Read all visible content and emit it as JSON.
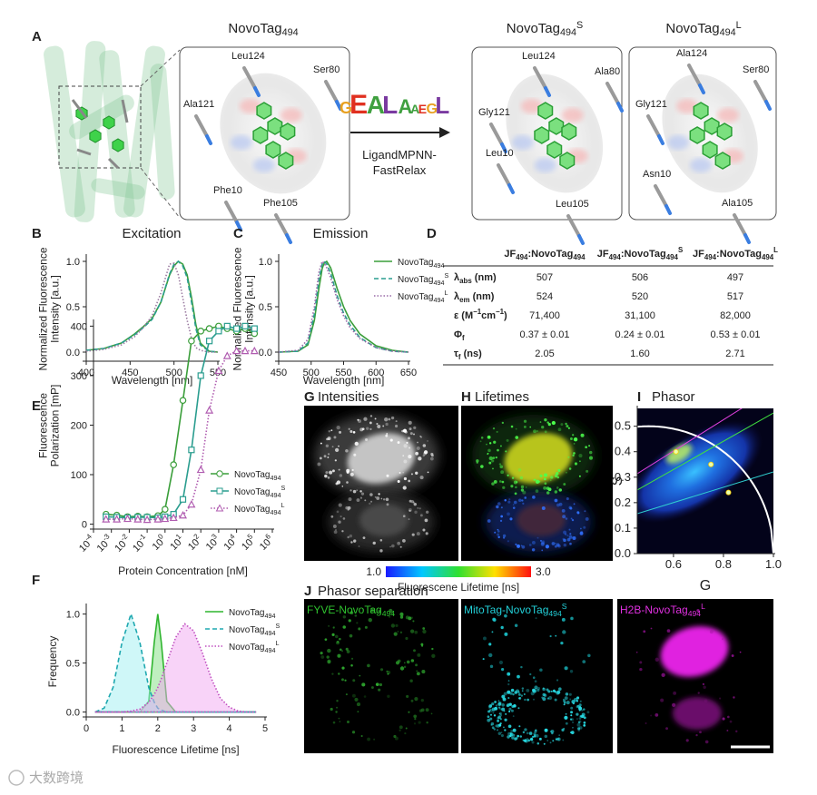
{
  "panel_a": {
    "label": "A",
    "titles": [
      [
        {
          "text": "NovoTag"
        },
        {
          "sub": "494"
        }
      ],
      [
        {
          "text": "NovoTag"
        },
        {
          "sub": "494"
        },
        {
          "sup": "S"
        }
      ],
      [
        {
          "text": "NovoTag"
        },
        {
          "sub": "494"
        },
        {
          "sup": "L"
        }
      ]
    ],
    "residues": [
      [
        "Leu124",
        "Ser80",
        "Ala121",
        "Phe10",
        "Phe105"
      ],
      [
        "Leu124",
        "Ala80",
        "Gly121",
        "Leu10",
        "Leu105"
      ],
      [
        "Ala124",
        "Ser80",
        "Gly121",
        "Asn10",
        "Ala105"
      ]
    ],
    "logo": [
      "G",
      "E",
      "A",
      "L",
      "A",
      "A",
      "E",
      "G",
      "L"
    ],
    "method": [
      "LigandMPNN-",
      "FastRelax"
    ]
  },
  "table_d": {
    "label": "D",
    "columns": [
      [
        {
          "text": "JF"
        },
        {
          "sub": "494"
        },
        {
          "text": ":NovoTag"
        },
        {
          "sub": "494"
        }
      ],
      [
        {
          "text": "JF"
        },
        {
          "sub": "494"
        },
        {
          "text": ":NovoTag"
        },
        {
          "sub": "494"
        },
        {
          "sup": "S"
        }
      ],
      [
        {
          "text": "JF"
        },
        {
          "sub": "494"
        },
        {
          "text": ":NovoTag"
        },
        {
          "sub": "494"
        },
        {
          "sup": "L"
        }
      ]
    ],
    "rows": [
      {
        "label": [
          {
            "text": "λ"
          },
          {
            "sub": "abs"
          },
          {
            "text": " (nm)"
          }
        ],
        "cells": [
          "507",
          "506",
          "497"
        ]
      },
      {
        "label": [
          {
            "text": "λ"
          },
          {
            "sub": "em"
          },
          {
            "text": " (nm)"
          }
        ],
        "cells": [
          "524",
          "520",
          "517"
        ]
      },
      {
        "label": [
          {
            "text": "ε (M"
          },
          {
            "sup": "−1"
          },
          {
            "text": "cm"
          },
          {
            "sup": "−1"
          },
          {
            "text": ")"
          }
        ],
        "cells": [
          "71,400",
          "31,100",
          "82,000"
        ]
      },
      {
        "label": [
          {
            "text": "Φ"
          },
          {
            "sub": "f"
          }
        ],
        "cells": [
          "0.37 ± 0.01",
          "0.24 ± 0.01",
          "0.53 ± 0.01"
        ]
      },
      {
        "label": [
          {
            "text": "τ"
          },
          {
            "sub": "f"
          },
          {
            "text": " (ns)"
          }
        ],
        "cells": [
          "2.05",
          "1.60",
          "2.71"
        ]
      }
    ]
  },
  "image_panels": [
    {
      "label": "G",
      "title": "Intensities"
    },
    {
      "label": "H",
      "title": "Lifetimes"
    }
  ],
  "colorbar": {
    "min": "1.0",
    "max": "3.0",
    "label": "Fluorescene Lifetime [ns]"
  },
  "panel_j": {
    "label": "J",
    "title": "Phasor separation",
    "channels": [
      [
        {
          "text": "FYVE-NovoTag"
        },
        {
          "sub": "494"
        }
      ],
      [
        {
          "text": "MitoTag-NovoTag"
        },
        {
          "sub": "494"
        },
        {
          "sup": "S"
        }
      ],
      [
        {
          "text": "H2B-NovoTag"
        },
        {
          "sub": "494"
        },
        {
          "sup": "L"
        }
      ]
    ]
  },
  "watermark": "大数跨境",
  "chart_data": [
    {
      "type": "line",
      "label": "B",
      "title": "Excitation",
      "xlabel": "Wavelength [nm]",
      "ylabel": [
        "Normalized Fluorescence",
        "Intensity [a.u.]"
      ],
      "x": [
        400,
        420,
        440,
        455,
        465,
        475,
        485,
        495,
        500,
        505,
        510,
        515,
        520,
        525,
        530,
        540,
        550
      ],
      "xlim": [
        400,
        550
      ],
      "xticks": [
        400,
        450,
        500,
        550
      ],
      "ylim": [
        -0.1,
        1.05
      ],
      "yticks": [
        {
          "value": 0,
          "label": "0.0"
        },
        0.5,
        {
          "value": 1,
          "label": "1.0"
        }
      ],
      "series": [
        {
          "color": "#3a9e3a",
          "dash": "solid",
          "values": [
            0.02,
            0.04,
            0.1,
            0.2,
            0.28,
            0.37,
            0.55,
            0.85,
            0.95,
            1.0,
            0.97,
            0.85,
            0.6,
            0.3,
            0.1,
            0.01,
            0.0
          ]
        },
        {
          "color": "#2a9d8f",
          "dash": "dashed",
          "values": [
            0.02,
            0.04,
            0.1,
            0.19,
            0.27,
            0.36,
            0.55,
            0.86,
            0.97,
            1.0,
            0.95,
            0.82,
            0.55,
            0.26,
            0.08,
            0.01,
            0.0
          ]
        },
        {
          "color": "#9a7aa0",
          "dash": "dotted",
          "values": [
            0.01,
            0.03,
            0.08,
            0.17,
            0.27,
            0.4,
            0.65,
            0.97,
            0.98,
            0.85,
            0.6,
            0.35,
            0.15,
            0.05,
            0.02,
            0.0,
            0.0
          ]
        }
      ]
    },
    {
      "type": "line",
      "label": "C",
      "title": "Emission",
      "xlabel": "Wavelength [nm]",
      "ylabel": [
        "Normalized Fluorescence",
        "Intensity [a.u.]"
      ],
      "legend": "top-right",
      "x": [
        450,
        480,
        495,
        505,
        512,
        517,
        520,
        524,
        530,
        540,
        550,
        560,
        575,
        600,
        625,
        650
      ],
      "xlim": [
        450,
        650
      ],
      "xticks": [
        450,
        500,
        550,
        600,
        650
      ],
      "ylim": [
        -0.1,
        1.05
      ],
      "yticks": [
        {
          "value": 0,
          "label": "0.0"
        },
        0.5,
        {
          "value": 1,
          "label": "1.0"
        }
      ],
      "series": [
        {
          "name": [
            {
              "text": "NovoTag"
            },
            {
              "sub": "494"
            }
          ],
          "color": "#3a9e3a",
          "dash": "solid",
          "values": [
            0,
            0.01,
            0.08,
            0.35,
            0.7,
            0.92,
            0.98,
            1.0,
            0.93,
            0.7,
            0.5,
            0.35,
            0.2,
            0.07,
            0.02,
            0.0
          ]
        },
        {
          "name": [
            {
              "text": "NovoTag"
            },
            {
              "sub": "494"
            },
            {
              "sup": "S"
            }
          ],
          "color": "#2a9d8f",
          "dash": "dashed",
          "values": [
            0,
            0.01,
            0.1,
            0.42,
            0.8,
            0.97,
            1.0,
            0.97,
            0.87,
            0.62,
            0.43,
            0.3,
            0.16,
            0.05,
            0.01,
            0
          ]
        },
        {
          "name": [
            {
              "text": "NovoTag"
            },
            {
              "sub": "494"
            },
            {
              "sup": "L"
            }
          ],
          "color": "#9a6aa8",
          "dash": "dotted",
          "values": [
            0,
            0.02,
            0.14,
            0.5,
            0.88,
            1.0,
            0.98,
            0.93,
            0.82,
            0.58,
            0.4,
            0.27,
            0.15,
            0.05,
            0.01,
            0
          ]
        }
      ]
    },
    {
      "type": "line",
      "label": "E",
      "xscale": "log",
      "xlabel": "Protein Concentration [nM]",
      "ylabel": [
        "Fluorescence",
        "Polarization [mP]"
      ],
      "legend": "right",
      "x": [
        0.0005,
        0.002,
        0.008,
        0.03,
        0.1,
        0.4,
        1,
        3,
        10,
        30,
        100,
        300,
        1000,
        3000,
        10000,
        30000,
        100000
      ],
      "xlim": [
        0.0001,
        1000000
      ],
      "xticks": [
        {
          "value": 0.0001,
          "label": "10",
          "sup": "-4"
        },
        {
          "value": 0.001,
          "label": "10",
          "sup": "-3"
        },
        {
          "value": 0.01,
          "label": "10",
          "sup": "-2"
        },
        {
          "value": 0.1,
          "label": "10",
          "sup": "-1"
        },
        {
          "value": 1,
          "label": "10",
          "sup": "0"
        },
        {
          "value": 10,
          "label": "10",
          "sup": "1"
        },
        {
          "value": 100,
          "label": "10",
          "sup": "2"
        },
        {
          "value": 1000,
          "label": "10",
          "sup": "3"
        },
        {
          "value": 10000,
          "label": "10",
          "sup": "4"
        },
        {
          "value": 100000,
          "label": "10",
          "sup": "5"
        },
        {
          "value": 1000000,
          "label": "10",
          "sup": "6"
        }
      ],
      "ylim": [
        -10,
        408
      ],
      "yticks": [
        0,
        100,
        200,
        300,
        400
      ],
      "series": [
        {
          "name": [
            {
              "text": "NovoTag"
            },
            {
              "sub": "494"
            }
          ],
          "color": "#3a9e3a",
          "dash": "solid",
          "marker": "circle",
          "values": [
            20,
            18,
            15,
            16,
            15,
            17,
            30,
            120,
            250,
            370,
            390,
            395,
            400,
            395,
            390,
            395,
            385
          ]
        },
        {
          "name": [
            {
              "text": "NovoTag"
            },
            {
              "sub": "494"
            },
            {
              "sup": "S"
            }
          ],
          "color": "#2a9d8f",
          "dash": "solid",
          "marker": "square",
          "values": [
            15,
            14,
            13,
            14,
            14,
            13,
            15,
            20,
            50,
            150,
            300,
            370,
            390,
            400,
            395,
            400,
            395
          ]
        },
        {
          "name": [
            {
              "text": "NovoTag"
            },
            {
              "sub": "494"
            },
            {
              "sup": "L"
            }
          ],
          "color": "#b05cb0",
          "dash": "dotted",
          "marker": "triangle",
          "values": [
            10,
            10,
            11,
            10,
            9,
            10,
            11,
            13,
            18,
            40,
            110,
            230,
            310,
            340,
            350,
            350,
            350
          ]
        }
      ]
    },
    {
      "type": "area",
      "label": "F",
      "xlabel": "Fluorescence Lifetime [ns]",
      "ylabel": [
        "Frequency"
      ],
      "legend": "top-right",
      "x": [
        0.25,
        0.5,
        0.75,
        1.0,
        1.25,
        1.5,
        1.75,
        1.9,
        2.0,
        2.1,
        2.25,
        2.5,
        2.75,
        3.0,
        3.25,
        3.5,
        3.75,
        4.0,
        4.25,
        4.5,
        4.75
      ],
      "xlim": [
        0,
        5
      ],
      "xticks": [
        0,
        1,
        2,
        3,
        4,
        5
      ],
      "ylim": [
        -0.05,
        1.08
      ],
      "yticks": [
        {
          "value": 0,
          "label": "0.0"
        },
        0.5,
        {
          "value": 1,
          "label": "1.0"
        }
      ],
      "series": [
        {
          "name": [
            {
              "text": "NovoTag"
            },
            {
              "sub": "494"
            }
          ],
          "color": "#2fb52f",
          "fill": "#7fe07f",
          "dash": "solid",
          "values": [
            0,
            0,
            0,
            0,
            0,
            0,
            0.11,
            0.71,
            1.0,
            0.71,
            0.11,
            0,
            0,
            0,
            0,
            0,
            0,
            0,
            0,
            0,
            0
          ]
        },
        {
          "name": [
            {
              "text": "NovoTag"
            },
            {
              "sub": "494"
            },
            {
              "sup": "S"
            }
          ],
          "color": "#1fa8b0",
          "fill": "#9ff0f2",
          "dash": "dashed",
          "values": [
            0,
            0.04,
            0.25,
            0.71,
            1.0,
            0.71,
            0.25,
            0.1,
            0.04,
            0.02,
            0,
            0,
            0,
            0,
            0,
            0,
            0,
            0,
            0,
            0,
            0
          ]
        },
        {
          "name": [
            {
              "text": "NovoTag"
            },
            {
              "sub": "494"
            },
            {
              "sup": "L"
            }
          ],
          "color": "#c050c0",
          "fill": "#f2a8f2",
          "dash": "dotted",
          "values": [
            0,
            0,
            0,
            0,
            0.01,
            0.03,
            0.1,
            0.18,
            0.25,
            0.34,
            0.5,
            0.76,
            0.9,
            0.83,
            0.6,
            0.34,
            0.14,
            0.05,
            0.01,
            0,
            0
          ]
        }
      ]
    },
    {
      "type": "scatter",
      "label": "I",
      "title": "Phasor",
      "xlabel": "G",
      "ylabel": [
        "S"
      ],
      "x": [
        0.61,
        0.75,
        0.82
      ],
      "xlim": [
        0.455,
        1.0
      ],
      "xticks": [
        0.6,
        0.8,
        {
          "value": 1,
          "label": "1.0"
        }
      ],
      "ylim": [
        0,
        0.57
      ],
      "yticks": [
        {
          "value": 0,
          "label": "0.0"
        },
        0.1,
        0.2,
        0.3,
        0.4,
        0.5
      ],
      "series": [
        {
          "color": "#e8ffb0",
          "values": [
            0.4,
            0.35,
            0.24
          ]
        }
      ]
    }
  ]
}
